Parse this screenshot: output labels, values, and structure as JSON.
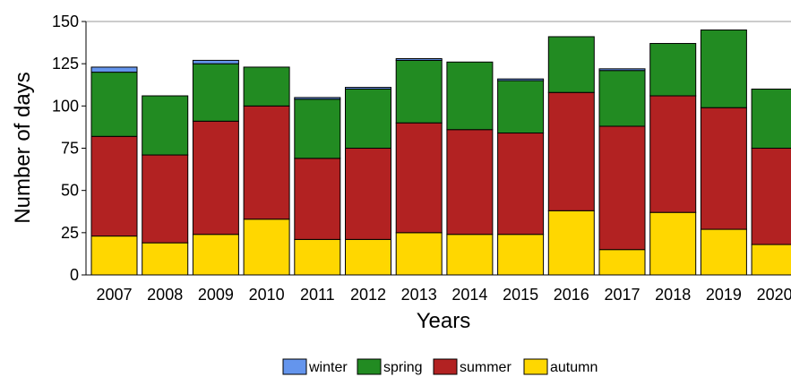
{
  "chart_data": {
    "type": "bar",
    "stacked": true,
    "xlabel": "Years",
    "ylabel": "Number of days",
    "ylim": [
      0,
      150
    ],
    "yticks": [
      0,
      25,
      50,
      75,
      100,
      125,
      150
    ],
    "grid": "horizontal line at top only",
    "legend_placement": "bottom-center",
    "categories": [
      "2007",
      "2008",
      "2009",
      "2010",
      "2011",
      "2012",
      "2013",
      "2014",
      "2015",
      "2016",
      "2017",
      "2018",
      "2019",
      "2020"
    ],
    "series": [
      {
        "name": "autumn",
        "color": "#ffd700",
        "values": [
          23,
          19,
          24,
          33,
          21,
          21,
          25,
          24,
          24,
          38,
          15,
          37,
          27,
          18
        ]
      },
      {
        "name": "summer",
        "color": "#b22222",
        "values": [
          59,
          52,
          67,
          67,
          48,
          54,
          65,
          62,
          60,
          70,
          73,
          69,
          72,
          57
        ]
      },
      {
        "name": "spring",
        "color": "#228b22",
        "values": [
          38,
          35,
          34,
          23,
          35,
          35,
          37,
          40,
          31,
          33,
          33,
          31,
          46,
          35
        ]
      },
      {
        "name": "winter",
        "color": "#6495ed",
        "values": [
          3,
          0,
          2,
          0,
          1,
          1,
          1,
          0,
          1,
          0,
          1,
          0,
          0,
          0
        ]
      }
    ],
    "legend_order": [
      "winter",
      "spring",
      "summer",
      "autumn"
    ]
  }
}
